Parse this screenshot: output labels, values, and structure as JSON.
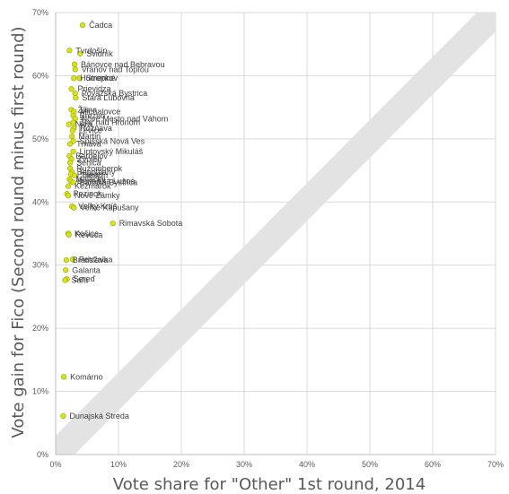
{
  "chart_data": {
    "type": "scatter",
    "title": "",
    "xlabel": "Vote share for \"Other\" 1st round, 2014",
    "ylabel": "Vote gain for Fico (Second round minus first round)",
    "xlim": [
      0,
      70
    ],
    "ylim": [
      0,
      70
    ],
    "x_ticks": [
      0,
      10,
      20,
      30,
      40,
      50,
      60,
      70
    ],
    "y_ticks": [
      0,
      10,
      20,
      30,
      40,
      50,
      60,
      70
    ],
    "x_tick_labels": [
      "0%",
      "10%",
      "20%",
      "30%",
      "40%",
      "50%",
      "60%",
      "70%"
    ],
    "y_tick_labels": [
      "0%",
      "10%",
      "20%",
      "30%",
      "40%",
      "50%",
      "60%",
      "70%"
    ],
    "grid": true,
    "legend": "none",
    "band": {
      "x0": 0,
      "x1": 70,
      "y0_low": -3,
      "y0_high": 3,
      "slope": 1
    },
    "colors": {
      "marker": "#d7e41a",
      "marker_edge": "#9aa400",
      "band": "#e3e3e3",
      "grid": "#d9d9d9"
    },
    "points": [
      {
        "name": "Čadca",
        "x": 4.3,
        "y": 68.0
      },
      {
        "name": "Tvrdošín",
        "x": 2.2,
        "y": 64.0
      },
      {
        "name": "Svidník",
        "x": 3.9,
        "y": 63.5
      },
      {
        "name": "Bánovce nad Bebravou",
        "x": 3.0,
        "y": 61.8
      },
      {
        "name": "Vranov nad Topľou",
        "x": 3.1,
        "y": 61.0
      },
      {
        "name": "Humenné",
        "x": 2.9,
        "y": 59.6
      },
      {
        "name": "Stropkov",
        "x": 3.8,
        "y": 59.6
      },
      {
        "name": "Prievidza",
        "x": 2.5,
        "y": 57.9
      },
      {
        "name": "Považská Bystrica",
        "x": 3.1,
        "y": 57.2
      },
      {
        "name": "Stará Ľubovňa",
        "x": 3.2,
        "y": 56.5
      },
      {
        "name": "Žilina",
        "x": 2.5,
        "y": 54.6
      },
      {
        "name": "Michalovce",
        "x": 2.9,
        "y": 54.3
      },
      {
        "name": "Brezno",
        "x": 2.8,
        "y": 53.7
      },
      {
        "name": "Nové Mesto nad Váhom",
        "x": 3.1,
        "y": 53.2
      },
      {
        "name": "Žiar nad Hronom",
        "x": 2.8,
        "y": 52.6
      },
      {
        "name": "Nitra",
        "x": 2.1,
        "y": 52.3
      },
      {
        "name": "Rožňava",
        "x": 2.9,
        "y": 51.7
      },
      {
        "name": "Levice",
        "x": 2.7,
        "y": 51.3
      },
      {
        "name": "Martin",
        "x": 2.6,
        "y": 50.4
      },
      {
        "name": "Spišská Nová Ves",
        "x": 2.8,
        "y": 49.6
      },
      {
        "name": "Trnava",
        "x": 2.3,
        "y": 49.2
      },
      {
        "name": "Liptovský Mikuláš",
        "x": 2.8,
        "y": 48.0
      },
      {
        "name": "Bardejov",
        "x": 2.2,
        "y": 47.3
      },
      {
        "name": "Zvolen",
        "x": 2.5,
        "y": 46.8
      },
      {
        "name": "Senica",
        "x": 2.3,
        "y": 46.2
      },
      {
        "name": "Ružomberok",
        "x": 2.3,
        "y": 45.3
      },
      {
        "name": "Topoľčany",
        "x": 2.6,
        "y": 44.7
      },
      {
        "name": "Poprad",
        "x": 2.4,
        "y": 44.4
      },
      {
        "name": "Trenčín",
        "x": 3.0,
        "y": 44.2
      },
      {
        "name": "Malacky",
        "x": 2.2,
        "y": 43.6
      },
      {
        "name": "Dunajská Lužná",
        "x": 2.4,
        "y": 43.3
      },
      {
        "name": "Banská Bystrica",
        "x": 2.8,
        "y": 43.1
      },
      {
        "name": "Kežmarok",
        "x": 2.0,
        "y": 42.5
      },
      {
        "name": "Pezinok",
        "x": 1.8,
        "y": 41.3
      },
      {
        "name": "Nové Zámky",
        "x": 2.0,
        "y": 41.0
      },
      {
        "name": "Veľký Krtíš",
        "x": 2.6,
        "y": 39.3
      },
      {
        "name": "Veľké Kapušany",
        "x": 2.9,
        "y": 39.1
      },
      {
        "name": "Rimavská Sobota",
        "x": 9.1,
        "y": 36.6
      },
      {
        "name": "Košice",
        "x": 2.0,
        "y": 35.0
      },
      {
        "name": "Revúca",
        "x": 2.1,
        "y": 34.8
      },
      {
        "name": "Bratislava",
        "x": 1.7,
        "y": 30.8
      },
      {
        "name": "Petržalka",
        "x": 2.7,
        "y": 30.9
      },
      {
        "name": "Galanta",
        "x": 1.6,
        "y": 29.2
      },
      {
        "name": "Sereď",
        "x": 1.8,
        "y": 27.8
      },
      {
        "name": "Šaľa",
        "x": 1.5,
        "y": 27.6
      },
      {
        "name": "Komárno",
        "x": 1.3,
        "y": 12.3
      },
      {
        "name": "Dunajská Streda",
        "x": 1.2,
        "y": 6.1
      }
    ]
  }
}
